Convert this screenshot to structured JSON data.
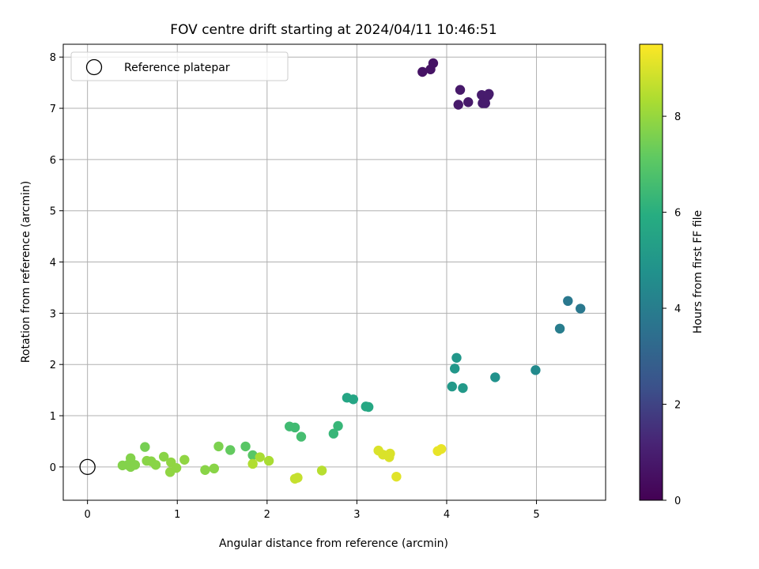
{
  "chart_data": {
    "type": "scatter",
    "title": "FOV centre drift starting at 2024/04/11 10:46:51",
    "xlabel": "Angular distance from reference (arcmin)",
    "ylabel": "Rotation from reference (arcmin)",
    "colorbar_label": "Hours from first FF file",
    "xlim": [
      -0.27,
      5.77
    ],
    "ylim": [
      -0.65,
      8.25
    ],
    "xticks": [
      0,
      1,
      2,
      3,
      4,
      5
    ],
    "yticks": [
      0,
      1,
      2,
      3,
      4,
      5,
      6,
      7,
      8
    ],
    "colorbar_range": [
      0,
      9.5
    ],
    "colorbar_ticks": [
      0,
      2,
      4,
      6,
      8
    ],
    "colormap": "viridis",
    "grid": true,
    "legend": {
      "position": "top-left",
      "label": "Reference platepar"
    },
    "reference_point": {
      "x": 0,
      "y": 0
    },
    "points": [
      {
        "x": 3.73,
        "y": 7.71,
        "c": 0.6
      },
      {
        "x": 3.82,
        "y": 7.76,
        "c": 0.6
      },
      {
        "x": 3.85,
        "y": 7.88,
        "c": 0.6
      },
      {
        "x": 4.15,
        "y": 7.36,
        "c": 0.8
      },
      {
        "x": 4.13,
        "y": 7.07,
        "c": 0.8
      },
      {
        "x": 4.24,
        "y": 7.12,
        "c": 0.8
      },
      {
        "x": 4.39,
        "y": 7.26,
        "c": 0.9
      },
      {
        "x": 4.4,
        "y": 7.1,
        "c": 0.9
      },
      {
        "x": 4.43,
        "y": 7.1,
        "c": 0.9
      },
      {
        "x": 4.47,
        "y": 7.28,
        "c": 0.9
      },
      {
        "x": 4.46,
        "y": 7.25,
        "c": 0.9
      },
      {
        "x": 5.35,
        "y": 3.24,
        "c": 3.8
      },
      {
        "x": 5.49,
        "y": 3.09,
        "c": 3.8
      },
      {
        "x": 5.26,
        "y": 2.7,
        "c": 4.0
      },
      {
        "x": 4.99,
        "y": 1.89,
        "c": 4.5
      },
      {
        "x": 4.54,
        "y": 1.75,
        "c": 4.8
      },
      {
        "x": 4.11,
        "y": 2.13,
        "c": 5.0
      },
      {
        "x": 4.09,
        "y": 1.92,
        "c": 5.0
      },
      {
        "x": 4.06,
        "y": 1.57,
        "c": 5.1
      },
      {
        "x": 4.18,
        "y": 1.54,
        "c": 5.1
      },
      {
        "x": 2.89,
        "y": 1.35,
        "c": 5.6
      },
      {
        "x": 2.96,
        "y": 1.32,
        "c": 5.6
      },
      {
        "x": 3.1,
        "y": 1.18,
        "c": 5.7
      },
      {
        "x": 3.13,
        "y": 1.17,
        "c": 5.7
      },
      {
        "x": 2.79,
        "y": 0.8,
        "c": 6.3
      },
      {
        "x": 2.74,
        "y": 0.65,
        "c": 6.3
      },
      {
        "x": 2.25,
        "y": 0.79,
        "c": 6.5
      },
      {
        "x": 2.31,
        "y": 0.77,
        "c": 6.5
      },
      {
        "x": 2.38,
        "y": 0.59,
        "c": 6.6
      },
      {
        "x": 1.76,
        "y": 0.4,
        "c": 7.0
      },
      {
        "x": 1.84,
        "y": 0.23,
        "c": 7.0
      },
      {
        "x": 1.59,
        "y": 0.33,
        "c": 7.2
      },
      {
        "x": 1.46,
        "y": 0.4,
        "c": 7.6
      },
      {
        "x": 1.31,
        "y": -0.06,
        "c": 7.8
      },
      {
        "x": 1.41,
        "y": -0.03,
        "c": 7.8
      },
      {
        "x": 0.64,
        "y": 0.39,
        "c": 7.5
      },
      {
        "x": 0.39,
        "y": 0.03,
        "c": 7.7
      },
      {
        "x": 0.45,
        "y": 0.04,
        "c": 7.7
      },
      {
        "x": 0.48,
        "y": 0.17,
        "c": 7.7
      },
      {
        "x": 0.48,
        "y": 0.0,
        "c": 7.7
      },
      {
        "x": 0.53,
        "y": 0.04,
        "c": 7.7
      },
      {
        "x": 0.66,
        "y": 0.12,
        "c": 7.8
      },
      {
        "x": 0.71,
        "y": 0.11,
        "c": 7.8
      },
      {
        "x": 0.76,
        "y": 0.04,
        "c": 7.8
      },
      {
        "x": 0.85,
        "y": 0.2,
        "c": 7.8
      },
      {
        "x": 0.92,
        "y": -0.1,
        "c": 7.9
      },
      {
        "x": 0.93,
        "y": 0.09,
        "c": 7.9
      },
      {
        "x": 0.99,
        "y": -0.02,
        "c": 7.9
      },
      {
        "x": 1.08,
        "y": 0.14,
        "c": 7.9
      },
      {
        "x": 1.92,
        "y": 0.19,
        "c": 8.3
      },
      {
        "x": 2.02,
        "y": 0.12,
        "c": 8.3
      },
      {
        "x": 1.84,
        "y": 0.06,
        "c": 8.4
      },
      {
        "x": 2.61,
        "y": -0.07,
        "c": 8.5
      },
      {
        "x": 2.31,
        "y": -0.23,
        "c": 8.7
      },
      {
        "x": 2.34,
        "y": -0.21,
        "c": 8.7
      },
      {
        "x": 3.24,
        "y": 0.32,
        "c": 9.0
      },
      {
        "x": 3.29,
        "y": 0.24,
        "c": 9.0
      },
      {
        "x": 3.36,
        "y": 0.19,
        "c": 9.0
      },
      {
        "x": 3.37,
        "y": 0.26,
        "c": 9.0
      },
      {
        "x": 3.44,
        "y": -0.19,
        "c": 9.1
      },
      {
        "x": 3.9,
        "y": 0.31,
        "c": 9.2
      },
      {
        "x": 3.94,
        "y": 0.35,
        "c": 9.2
      }
    ]
  }
}
